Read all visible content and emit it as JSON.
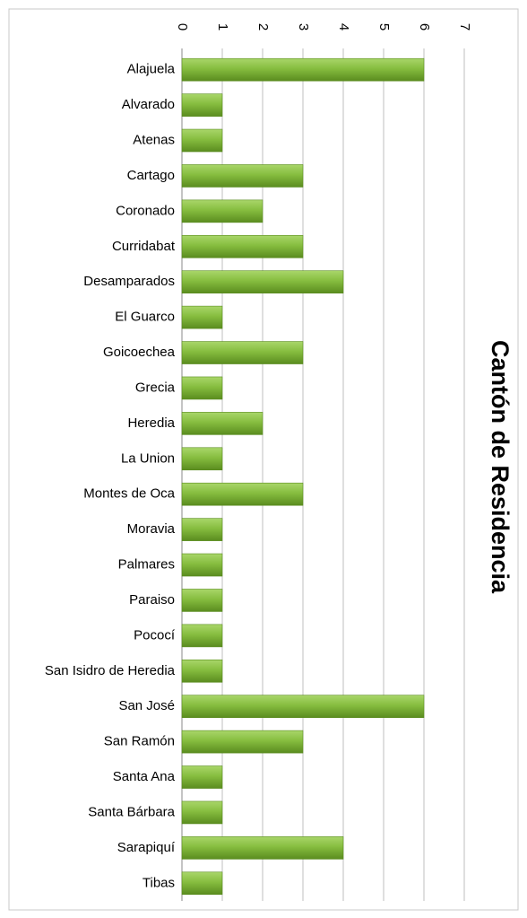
{
  "chart_data": {
    "type": "bar",
    "orientation": "horizontal",
    "title": "Cantón de Residencia",
    "categories": [
      "Alajuela",
      "Alvarado",
      "Atenas",
      "Cartago",
      "Coronado",
      "Curridabat",
      "Desamparados",
      "El Guarco",
      "Goicoechea",
      "Grecia",
      "Heredia",
      "La Union",
      "Montes de Oca",
      "Moravia",
      "Palmares",
      "Paraiso",
      "Pococí",
      "San Isidro de Heredia",
      "San José",
      "San Ramón",
      "Santa Ana",
      "Santa Bárbara",
      "Sarapiquí",
      "Tibas"
    ],
    "values": [
      6,
      1,
      1,
      3,
      2,
      3,
      4,
      1,
      3,
      1,
      2,
      1,
      3,
      1,
      1,
      1,
      1,
      1,
      6,
      3,
      1,
      1,
      4,
      1
    ],
    "color": "#7fb535",
    "xlim": [
      0,
      7
    ],
    "xticks": [
      0,
      1,
      2,
      3,
      4,
      5,
      6,
      7
    ],
    "grid": true
  }
}
